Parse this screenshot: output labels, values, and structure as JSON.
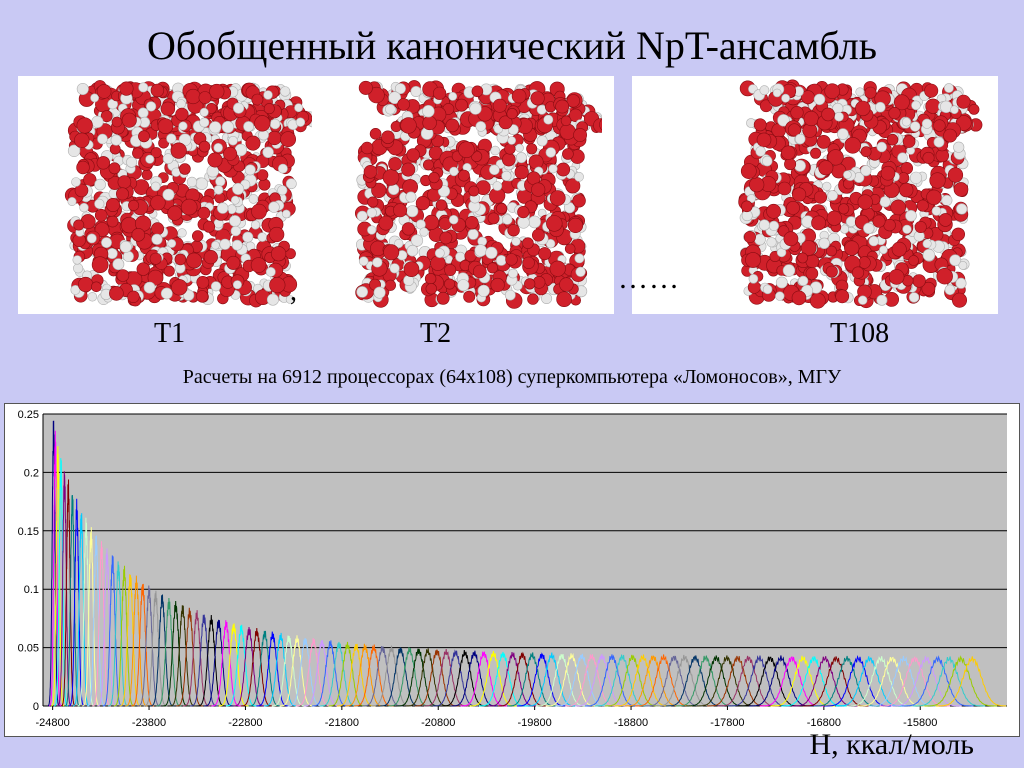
{
  "title": "Обобщенный канонический NpT-ансамбль",
  "images": {
    "comma": ",",
    "dots": "……",
    "labels": [
      "T1",
      "T2",
      "T108"
    ]
  },
  "subtitle": "Расчеты на 6912 процессорах (64х108) суперкомпьютера «Ломоносов», МГУ",
  "colors": {
    "background": "#c9c9f4",
    "plot_area": "#c0c0c0",
    "oxygen": "#d0202a",
    "hydrogen": "#e6e6e6"
  },
  "chart_data": {
    "type": "line",
    "title": "",
    "xlabel": "H, ккал/моль",
    "ylabel": "",
    "xlim": [
      -24900,
      -14900
    ],
    "ylim": [
      0,
      0.25
    ],
    "x_ticks": [
      -24800,
      -23800,
      -22800,
      -21800,
      -20800,
      -19800,
      -18800,
      -17800,
      -16800,
      -15800
    ],
    "y_ticks": [
      0,
      0.05,
      0.1,
      0.15,
      0.2,
      0.25
    ],
    "y_tick_labels": [
      "0",
      "0.05",
      "0.1",
      "0.15",
      "0.2",
      "0.25"
    ],
    "grid": "horizontal",
    "legend": "none",
    "series_count": 108,
    "series_note": "108 overlapping bell-shaped energy histograms, one per temperature T1…T108",
    "peak_centers_first_last": [
      -24790,
      -15260
    ],
    "peak_heights_first_last": [
      0.235,
      0.04
    ],
    "palette": [
      "#000080",
      "#ff00ff",
      "#ffff00",
      "#00ffff",
      "#800080",
      "#800000",
      "#008080",
      "#0000ff",
      "#00ccff",
      "#ccffcc",
      "#ffff99",
      "#99ccff",
      "#ff99cc",
      "#cc99ff",
      "#3366ff",
      "#33cccc",
      "#99cc00",
      "#ffcc00",
      "#ff9900",
      "#ff6600",
      "#666699",
      "#969696",
      "#003366",
      "#339966",
      "#003300",
      "#333300",
      "#993300",
      "#993366",
      "#333399",
      "#000000"
    ]
  }
}
